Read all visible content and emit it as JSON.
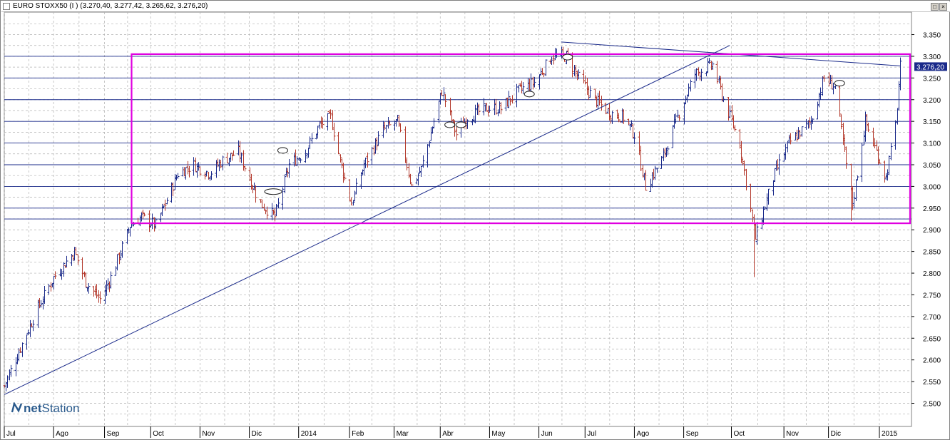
{
  "window": {
    "title": "EURO STOXX50 (I ) (3.270,40, 3.277,42, 3.265,62, 3.276,20)",
    "minimize_label": "_",
    "restore_label": "□",
    "close_label": "×"
  },
  "logo": {
    "prefix": "net",
    "suffix": "Station"
  },
  "colors": {
    "bar_up": "#1a2a8a",
    "bar_down": "#b3372a",
    "rectangle": "#e000e0",
    "trendline": "#1a2a8a",
    "hline": "#1a2a8a",
    "grid": "#b0b0b0",
    "price_tag_bg": "#1a2a8a",
    "price_tag_text": "#ffffff"
  },
  "chart_data": {
    "type": "ohlc",
    "title": "EURO STOXX50 (I )",
    "last_ohlc": {
      "open": 3270.4,
      "high": 3277.42,
      "low": 3265.62,
      "close": 3276.2
    },
    "price_tag": "3.276,20",
    "ylim": [
      2500,
      3350
    ],
    "y_ticks": [
      {
        "value": 3350,
        "label": "3.350"
      },
      {
        "value": 3300,
        "label": "3.300"
      },
      {
        "value": 3250,
        "label": "3.250"
      },
      {
        "value": 3200,
        "label": "3.200"
      },
      {
        "value": 3150,
        "label": "3.150"
      },
      {
        "value": 3100,
        "label": "3.100"
      },
      {
        "value": 3050,
        "label": "3.050"
      },
      {
        "value": 3000,
        "label": "3.000"
      },
      {
        "value": 2950,
        "label": "2.950"
      },
      {
        "value": 2900,
        "label": "2.900"
      },
      {
        "value": 2850,
        "label": "2.850"
      },
      {
        "value": 2800,
        "label": "2.800"
      },
      {
        "value": 2750,
        "label": "2.750"
      },
      {
        "value": 2700,
        "label": "2.700"
      },
      {
        "value": 2650,
        "label": "2.650"
      },
      {
        "value": 2600,
        "label": "2.600"
      },
      {
        "value": 2550,
        "label": "2.550"
      },
      {
        "value": 2500,
        "label": "2.500"
      }
    ],
    "x_start": "2013-07-01",
    "x_end": "2015-01-15",
    "x_ticks": [
      {
        "date": "2013-07-01",
        "label": "Jul"
      },
      {
        "date": "2013-08-01",
        "label": "Ago"
      },
      {
        "date": "2013-09-02",
        "label": "Sep"
      },
      {
        "date": "2013-10-01",
        "label": "Oct"
      },
      {
        "date": "2013-11-01",
        "label": "Nov"
      },
      {
        "date": "2013-12-02",
        "label": "Dic"
      },
      {
        "date": "2014-01-02",
        "label": "2014"
      },
      {
        "date": "2014-02-03",
        "label": "Feb"
      },
      {
        "date": "2014-03-03",
        "label": "Mar"
      },
      {
        "date": "2014-04-01",
        "label": "Abr"
      },
      {
        "date": "2014-05-02",
        "label": "May"
      },
      {
        "date": "2014-06-02",
        "label": "Jun"
      },
      {
        "date": "2014-07-01",
        "label": "Jul"
      },
      {
        "date": "2014-08-01",
        "label": "Ago"
      },
      {
        "date": "2014-09-01",
        "label": "Sep"
      },
      {
        "date": "2014-10-01",
        "label": "Oct"
      },
      {
        "date": "2014-11-03",
        "label": "Nov"
      },
      {
        "date": "2014-12-01",
        "label": "Dic"
      },
      {
        "date": "2015-01-02",
        "label": "2015"
      }
    ],
    "close_path": [
      [
        "2013-07-01",
        2540
      ],
      [
        "2013-07-10",
        2620
      ],
      [
        "2013-07-22",
        2720
      ],
      [
        "2013-08-01",
        2790
      ],
      [
        "2013-08-14",
        2850
      ],
      [
        "2013-08-21",
        2780
      ],
      [
        "2013-08-30",
        2740
      ],
      [
        "2013-09-06",
        2790
      ],
      [
        "2013-09-18",
        2910
      ],
      [
        "2013-09-25",
        2930
      ],
      [
        "2013-10-04",
        2910
      ],
      [
        "2013-10-10",
        2960
      ],
      [
        "2013-10-18",
        3030
      ],
      [
        "2013-10-28",
        3050
      ],
      [
        "2013-11-07",
        3030
      ],
      [
        "2013-11-15",
        3060
      ],
      [
        "2013-11-25",
        3080
      ],
      [
        "2013-12-03",
        3010
      ],
      [
        "2013-12-09",
        2960
      ],
      [
        "2013-12-18",
        2930
      ],
      [
        "2013-12-27",
        3050
      ],
      [
        "2014-01-06",
        3080
      ],
      [
        "2014-01-15",
        3140
      ],
      [
        "2014-01-22",
        3160
      ],
      [
        "2014-01-28",
        3060
      ],
      [
        "2014-02-04",
        2960
      ],
      [
        "2014-02-12",
        3050
      ],
      [
        "2014-02-24",
        3130
      ],
      [
        "2014-03-05",
        3150
      ],
      [
        "2014-03-14",
        3000
      ],
      [
        "2014-03-20",
        3040
      ],
      [
        "2014-04-02",
        3220
      ],
      [
        "2014-04-11",
        3120
      ],
      [
        "2014-04-18",
        3160
      ],
      [
        "2014-04-30",
        3180
      ],
      [
        "2014-05-09",
        3180
      ],
      [
        "2014-05-20",
        3220
      ],
      [
        "2014-05-30",
        3240
      ],
      [
        "2014-06-10",
        3300
      ],
      [
        "2014-06-19",
        3300
      ],
      [
        "2014-06-27",
        3250
      ],
      [
        "2014-07-07",
        3200
      ],
      [
        "2014-07-16",
        3170
      ],
      [
        "2014-07-25",
        3160
      ],
      [
        "2014-08-01",
        3120
      ],
      [
        "2014-08-08",
        3000
      ],
      [
        "2014-08-18",
        3060
      ],
      [
        "2014-08-29",
        3170
      ],
      [
        "2014-09-08",
        3260
      ],
      [
        "2014-09-19",
        3280
      ],
      [
        "2014-09-26",
        3200
      ],
      [
        "2014-10-06",
        3100
      ],
      [
        "2014-10-16",
        2880
      ],
      [
        "2014-10-27",
        3020
      ],
      [
        "2014-11-06",
        3100
      ],
      [
        "2014-11-20",
        3150
      ],
      [
        "2014-11-28",
        3250
      ],
      [
        "2014-12-05",
        3230
      ],
      [
        "2014-12-12",
        3050
      ],
      [
        "2014-12-16",
        2960
      ],
      [
        "2014-12-24",
        3150
      ],
      [
        "2015-01-06",
        3020
      ],
      [
        "2015-01-12",
        3140
      ],
      [
        "2015-01-15",
        3276.2
      ]
    ],
    "spikes": [
      {
        "date": "2014-10-15",
        "low": 2791
      },
      {
        "date": "2014-12-15",
        "low": 2920
      }
    ],
    "rectangle": {
      "x1": "2013-09-19",
      "x2": "2015-01-15",
      "y1": 2915,
      "y2": 3305
    },
    "horizontal_lines": [
      3300,
      3250,
      3200,
      3150,
      3100,
      3050,
      3000,
      2950,
      2925
    ],
    "trendlines": [
      {
        "x1": "2013-07-01",
        "y1": 2520,
        "x2": "2014-09-30",
        "y2": 3325
      },
      {
        "x1": "2014-06-16",
        "y1": 3333,
        "x2": "2015-01-15",
        "y2": 3278
      }
    ],
    "gap_markers": [
      {
        "date": "2013-12-17",
        "value": 2988
      },
      {
        "date": "2013-12-23",
        "value": 3083
      },
      {
        "date": "2014-04-07",
        "value": 3142
      },
      {
        "date": "2014-04-14",
        "value": 3142
      },
      {
        "date": "2014-05-27",
        "value": 3213
      },
      {
        "date": "2014-06-20",
        "value": 3298
      },
      {
        "date": "2014-12-08",
        "value": 3238
      }
    ]
  }
}
